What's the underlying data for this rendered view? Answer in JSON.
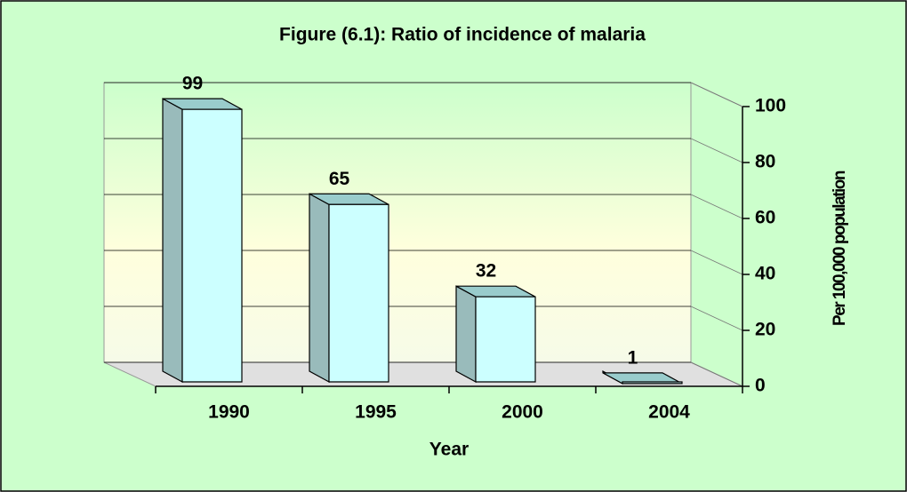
{
  "chart_data": {
    "type": "bar3d",
    "title": "Figure (6.1): Ratio of incidence of malaria",
    "xlabel": "Year",
    "ylabel": "Per 100,000 population",
    "categories": [
      "1990",
      "1995",
      "2000",
      "2004"
    ],
    "values": [
      99,
      65,
      32,
      1
    ],
    "color": "#ccffff",
    "ylim": [
      0,
      100
    ],
    "yticks": [
      0,
      20,
      40,
      60,
      80,
      100
    ],
    "grid": true
  }
}
